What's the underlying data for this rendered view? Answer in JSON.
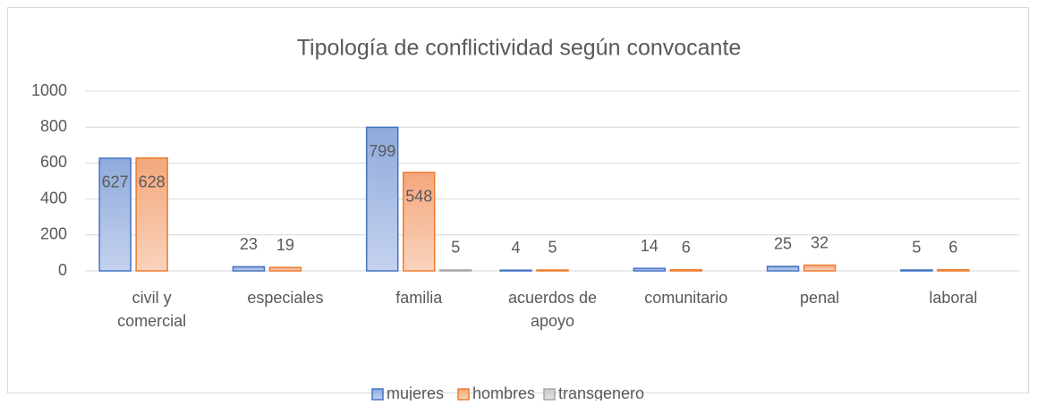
{
  "chart_data": {
    "type": "bar",
    "title": "Tipología de conflictividad según convocante",
    "categories": [
      "civil y comercial",
      "especiales",
      "familia",
      "acuerdos de apoyo",
      "comunitario",
      "penal",
      "laboral"
    ],
    "series": [
      {
        "name": "mujeres",
        "color": "#4472c4",
        "values": [
          627,
          23,
          799,
          4,
          14,
          25,
          5
        ]
      },
      {
        "name": "hombres",
        "color": "#ed7d31",
        "values": [
          628,
          19,
          548,
          5,
          6,
          32,
          6
        ]
      },
      {
        "name": "transgenero",
        "color": "#a5a5a5",
        "values": [
          null,
          null,
          5,
          null,
          null,
          null,
          null
        ]
      }
    ],
    "ylim": [
      0,
      1000
    ],
    "yticks": [
      0,
      200,
      400,
      600,
      800,
      1000
    ],
    "grid": true,
    "legend": "bottom"
  }
}
